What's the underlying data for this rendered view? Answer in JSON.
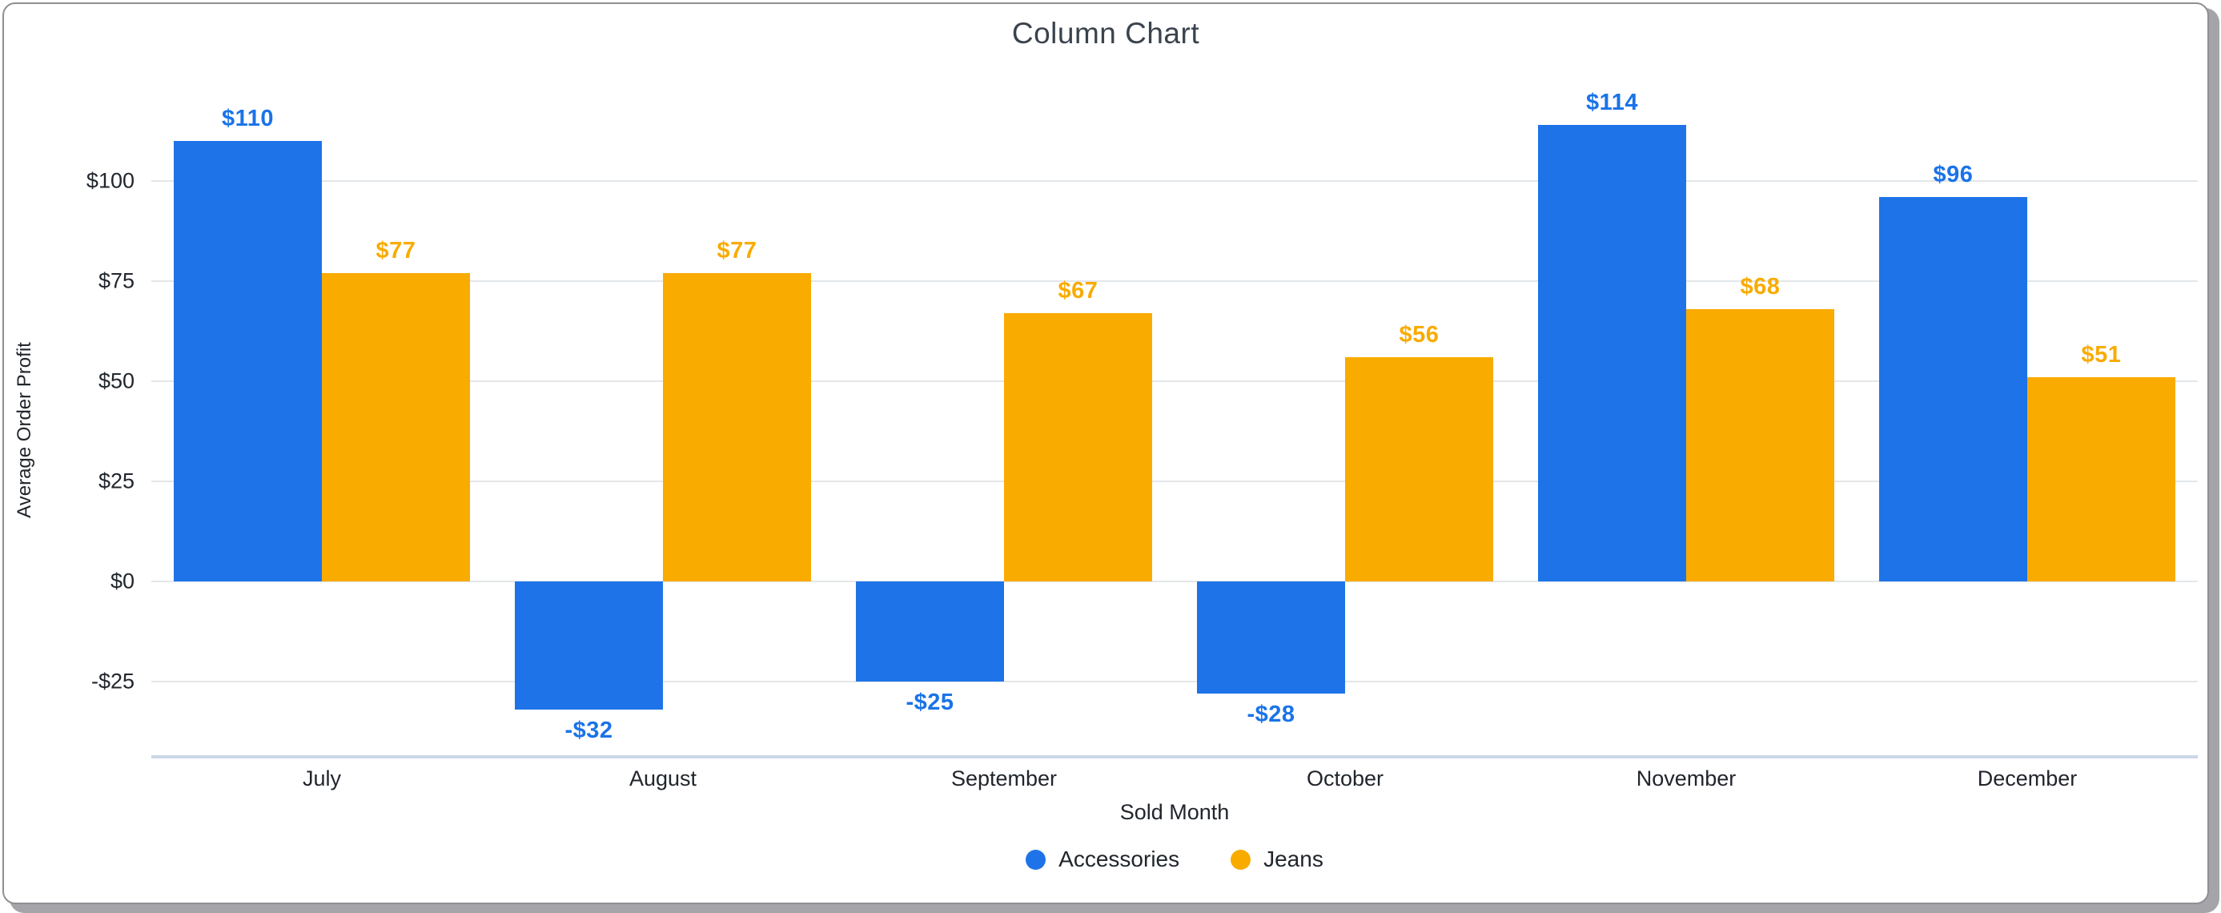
{
  "chart_data": {
    "type": "bar",
    "title": "Column Chart",
    "xlabel": "Sold Month",
    "ylabel": "Average Order Profit",
    "categories": [
      "July",
      "August",
      "September",
      "October",
      "November",
      "December"
    ],
    "series": [
      {
        "name": "Accessories",
        "color": "#1e73e8",
        "label_color": "#1a73e8",
        "values": [
          110,
          -32,
          -25,
          -28,
          114,
          96
        ],
        "labels": [
          "$110",
          "-$32",
          "-$25",
          "-$28",
          "$114",
          "$96"
        ]
      },
      {
        "name": "Jeans",
        "color": "#f9ab00",
        "label_color": "#f9ab00",
        "values": [
          77,
          77,
          67,
          56,
          68,
          51
        ],
        "labels": [
          "$77",
          "$77",
          "$67",
          "$56",
          "$68",
          "$51"
        ]
      }
    ],
    "y_ticks": [
      {
        "v": 100,
        "label": "$100"
      },
      {
        "v": 75,
        "label": "$75"
      },
      {
        "v": 50,
        "label": "$50"
      },
      {
        "v": 25,
        "label": "$25"
      },
      {
        "v": 0,
        "label": "$0"
      },
      {
        "v": -25,
        "label": "-$25"
      }
    ],
    "ylim": [
      -43.5,
      120.5
    ],
    "grid": true,
    "legend_position": "bottom",
    "gridline_color": "#e4e7ea",
    "axis_line_color": "#ccd7e8",
    "title_color": "#3a434d",
    "axis_text_color": "#21262c"
  }
}
